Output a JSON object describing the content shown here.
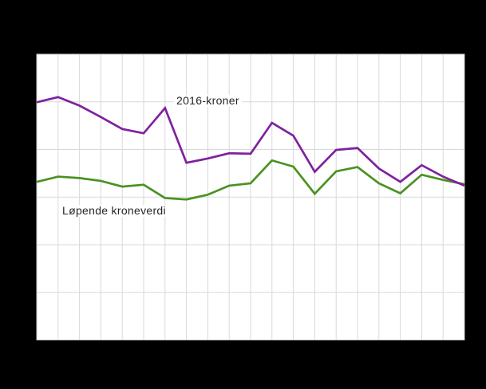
{
  "figure": {
    "background": "#000000",
    "plot_background": "#ffffff",
    "gridline_color": "#d9d9d9",
    "plot_border_color": "#c6c6c6",
    "label_text_color": "#262626"
  },
  "chart_data": {
    "type": "line",
    "title": "",
    "xlabel": "",
    "ylabel": "",
    "x_gridline_count": 21,
    "y_gridline_count": 7,
    "x": [
      0,
      1,
      2,
      3,
      4,
      5,
      6,
      7,
      8,
      9,
      10,
      11,
      12,
      13,
      14,
      15,
      16,
      17,
      18,
      19,
      20
    ],
    "ylim": [
      0,
      6
    ],
    "y_unit": "gridline intervals from bottom edge (numeric axis tick labels are not visible in the image)",
    "legend_position": "inline data labels on plot",
    "series": [
      {
        "name": "2016-kroner",
        "color": "#7f219f",
        "values": [
          4.99,
          5.1,
          4.92,
          4.68,
          4.43,
          4.34,
          4.87,
          3.72,
          3.81,
          3.92,
          3.91,
          4.56,
          4.29,
          3.53,
          3.99,
          4.03,
          3.6,
          3.32,
          3.67,
          3.43,
          3.24
        ]
      },
      {
        "name": "Løpende kroneverdi",
        "color": "#4a9220",
        "values": [
          3.32,
          3.43,
          3.4,
          3.34,
          3.22,
          3.26,
          2.98,
          2.95,
          3.05,
          3.24,
          3.29,
          3.77,
          3.64,
          3.07,
          3.54,
          3.63,
          3.29,
          3.08,
          3.47,
          3.36,
          3.27
        ]
      }
    ]
  }
}
